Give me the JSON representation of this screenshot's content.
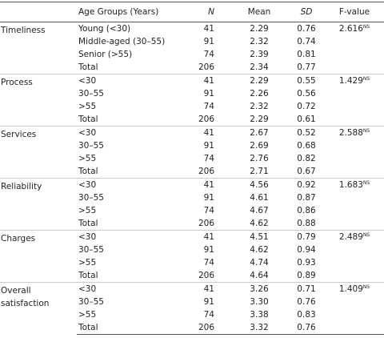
{
  "header": [
    "",
    "Age Groups (Years)",
    "N",
    "Mean",
    "SD",
    "F-value"
  ],
  "groups": [
    {
      "label": "Timeliness",
      "fvalue": {
        "value": "2.616",
        "note": "NS"
      },
      "rows": [
        [
          "Young (<30)",
          "41",
          "2.29",
          "0.76"
        ],
        [
          "Middle-aged (30–55)",
          "91",
          "2.32",
          "0.74"
        ],
        [
          "Senior (>55)",
          "74",
          "2.39",
          "0.81"
        ],
        [
          "Total",
          "206",
          "2.34",
          "0.77"
        ]
      ]
    },
    {
      "label": "Process",
      "fvalue": {
        "value": "1.429",
        "note": "NS"
      },
      "rows": [
        [
          "<30",
          "41",
          "2.29",
          "0.55"
        ],
        [
          "30–55",
          "91",
          "2.26",
          "0.56"
        ],
        [
          ">55",
          "74",
          "2.32",
          "0.72"
        ],
        [
          "Total",
          "206",
          "2.29",
          "0.61"
        ]
      ]
    },
    {
      "label": "Services",
      "fvalue": {
        "value": "2.588",
        "note": "NS"
      },
      "rows": [
        [
          "<30",
          "41",
          "2.67",
          "0.52"
        ],
        [
          "30–55",
          "91",
          "2.69",
          "0.68"
        ],
        [
          ">55",
          "74",
          "2.76",
          "0.82"
        ],
        [
          "Total",
          "206",
          "2.71",
          "0.67"
        ]
      ]
    },
    {
      "label": "Reliability",
      "fvalue": {
        "value": "1.683",
        "note": "NS"
      },
      "rows": [
        [
          "<30",
          "41",
          "4.56",
          "0.92"
        ],
        [
          "30–55",
          "91",
          "4.61",
          "0.87"
        ],
        [
          ">55",
          "74",
          "4.67",
          "0.86"
        ],
        [
          "Total",
          "206",
          "4.62",
          "0.88"
        ]
      ]
    },
    {
      "label": "Charges",
      "fvalue": {
        "value": "2.489",
        "note": "NS"
      },
      "rows": [
        [
          "<30",
          "41",
          "4.51",
          "0.79"
        ],
        [
          "30–55",
          "91",
          "4.62",
          "0.94"
        ],
        [
          ">55",
          "74",
          "4.74",
          "0.93"
        ],
        [
          "Total",
          "206",
          "4.64",
          "0.89"
        ]
      ]
    },
    {
      "label": "Overall satisfaction",
      "fvalue": {
        "value": "1.409",
        "note": "NS"
      },
      "rows": [
        [
          "<30",
          "41",
          "3.26",
          "0.71"
        ],
        [
          "30–55",
          "91",
          "3.30",
          "0.76"
        ],
        [
          ">55",
          "74",
          "3.38",
          "0.83"
        ],
        [
          "Total",
          "206",
          "3.32",
          "0.76"
        ]
      ]
    }
  ]
}
